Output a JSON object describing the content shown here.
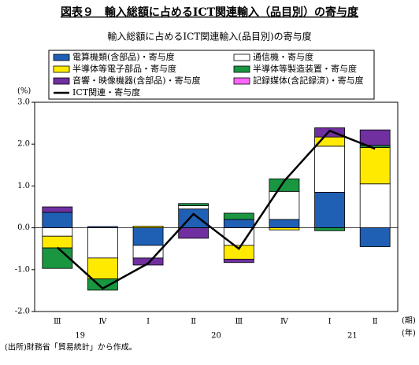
{
  "chart_data": {
    "type": "stacked-bar-line",
    "title": "図表９　輸入総額に占めるICT関連輸入（品目別）の寄与度",
    "subtitle": "輸入総額に占めるICT関連輸入(品目別)の寄与度",
    "y_unit": "(%)",
    "x_unit_period": "(期)",
    "x_unit_year": "(年)",
    "categories": [
      "Ⅲ",
      "Ⅳ",
      "Ⅰ",
      "Ⅱ",
      "Ⅲ",
      "Ⅳ",
      "Ⅰ",
      "Ⅱ"
    ],
    "years": [
      "19",
      "20",
      "21"
    ],
    "series": [
      {
        "name": "電算機類(含部品)・寄与度",
        "color": "#1f5fb4",
        "values": [
          0.37,
          0.03,
          -0.42,
          0.45,
          0.2,
          0.2,
          0.85,
          -0.45
        ]
      },
      {
        "name": "通信機・寄与度",
        "color": "#ffffff",
        "values": [
          -0.2,
          -0.72,
          -0.3,
          0.08,
          -0.42,
          0.67,
          1.1,
          1.05
        ]
      },
      {
        "name": "半導体等電子部品・寄与度",
        "color": "#ffea00",
        "values": [
          -0.28,
          -0.5,
          0.04,
          0,
          -0.33,
          -0.05,
          0.22,
          0.87
        ]
      },
      {
        "name": "半導体等製造装置・寄与度",
        "color": "#1a9641",
        "values": [
          -0.49,
          -0.27,
          0,
          0.05,
          0.15,
          0.3,
          -0.07,
          0.05
        ]
      },
      {
        "name": "音響・映像機器(含部品)・寄与度",
        "color": "#7030a0",
        "values": [
          0.13,
          0,
          -0.17,
          -0.25,
          -0.08,
          0,
          0.22,
          0.37
        ]
      },
      {
        "name": "記録媒体(含記録済)・寄与度",
        "color": "#ff66ff",
        "values": [
          0,
          0,
          0,
          0,
          0,
          0,
          0,
          0
        ]
      }
    ],
    "line": {
      "name": "ICT関連・寄与度",
      "color": "#000000",
      "values": [
        -0.47,
        -1.45,
        -0.85,
        0.33,
        -0.5,
        1.12,
        2.32,
        1.89
      ]
    },
    "ylim": [
      -2.0,
      3.0
    ],
    "yticks": [
      {
        "value": -2,
        "label": "-2.0"
      },
      {
        "value": -1,
        "label": "-1.0"
      },
      {
        "value": 0,
        "label": "0.0"
      },
      {
        "value": 1,
        "label": "1.0"
      },
      {
        "value": 2,
        "label": "2.0"
      },
      {
        "value": 3,
        "label": "3.0"
      }
    ],
    "source": "(出所)財務省「貿易統計」から作成。"
  }
}
